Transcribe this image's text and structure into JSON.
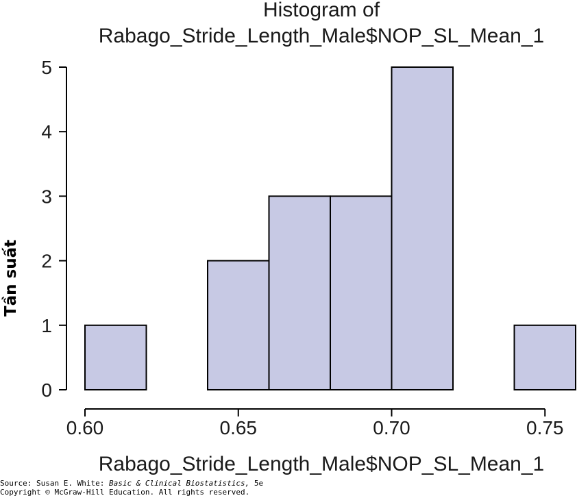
{
  "chart_data": {
    "type": "bar",
    "title": [
      "Histogram of",
      "Rabago_Stride_Length_Male$NOP_SL_Mean_1"
    ],
    "xlabel": "Rabago_Stride_Length_Male$NOP_SL_Mean_1",
    "ylabel": "Tần suất",
    "bins": [
      {
        "start": 0.6,
        "end": 0.62,
        "count": 1
      },
      {
        "start": 0.62,
        "end": 0.64,
        "count": 0
      },
      {
        "start": 0.64,
        "end": 0.66,
        "count": 2
      },
      {
        "start": 0.66,
        "end": 0.68,
        "count": 3
      },
      {
        "start": 0.68,
        "end": 0.7,
        "count": 3
      },
      {
        "start": 0.7,
        "end": 0.72,
        "count": 5
      },
      {
        "start": 0.72,
        "end": 0.74,
        "count": 0
      },
      {
        "start": 0.74,
        "end": 0.76,
        "count": 1
      }
    ],
    "xticks": [
      "0.60",
      "0.65",
      "0.70",
      "0.75"
    ],
    "yticks": [
      "0",
      "1",
      "2",
      "3",
      "4",
      "5"
    ],
    "xlim": [
      0.6,
      0.76
    ],
    "ylim": [
      0,
      5
    ],
    "bar_color": "#c7c9e4",
    "edge_color": "#000000",
    "grid": false
  },
  "source": {
    "prefix": "Source: Susan E. White: ",
    "book": "Basic & Clinical Biostatistics,",
    "edition": " 5e",
    "copyright": "Copyright © McGraw-Hill Education. All rights reserved."
  }
}
